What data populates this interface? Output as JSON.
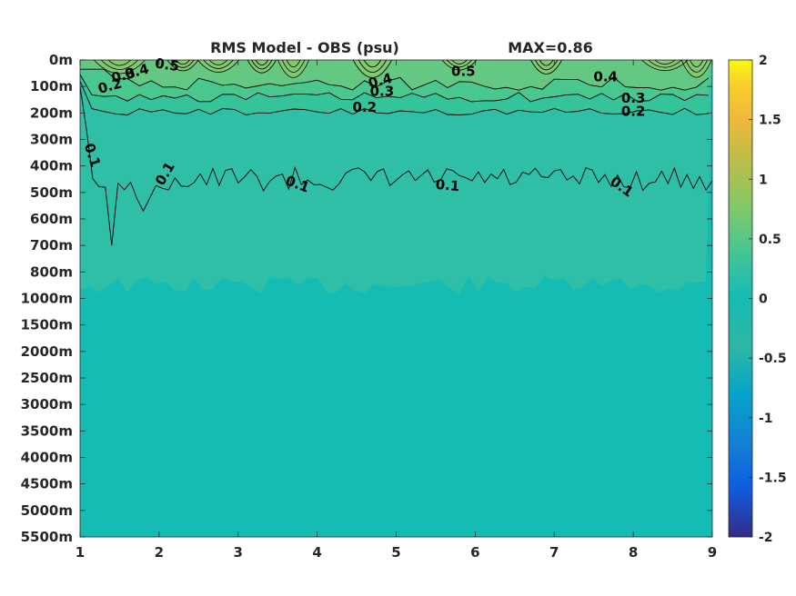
{
  "chart_data": {
    "type": "heatmap",
    "title": "RMS Model - OBS (psu)",
    "max_label": "MAX=0.86",
    "xlabel": "",
    "ylabel": "",
    "x_ticks": [
      "1",
      "2",
      "3",
      "4",
      "5",
      "6",
      "7",
      "8",
      "9"
    ],
    "xlim": [
      1,
      9
    ],
    "y_ticks": [
      "0m",
      "100m",
      "200m",
      "300m",
      "400m",
      "500m",
      "600m",
      "700m",
      "800m",
      "1000m",
      "1500m",
      "2000m",
      "2500m",
      "3000m",
      "3500m",
      "4000m",
      "4500m",
      "5000m",
      "5500m"
    ],
    "colorbar": {
      "range": [
        -2,
        2
      ],
      "ticks": [
        "2",
        "1.5",
        "1",
        "0.5",
        "0",
        "-0.5",
        "-1",
        "-1.5",
        "-2"
      ],
      "colormap": "parula"
    },
    "band_colors": {
      "v0_0": "#14bcb4",
      "v0_1": "#2ebfa6",
      "v0_2": "#35c49a",
      "v0_3": "#4ac68f",
      "v0_4": "#64c883",
      "v0_5": "#82c870"
    },
    "contour_levels": [
      0.1,
      0.2,
      0.3,
      0.4,
      0.5
    ],
    "contour_labels": [
      {
        "text": "0.5",
        "x": 2.1,
        "depth_index": 0.2,
        "angle": 8
      },
      {
        "text": "0.4",
        "x": 1.72,
        "depth_index": 0.45,
        "angle": -15
      },
      {
        "text": "0.3",
        "x": 1.55,
        "depth_index": 0.6,
        "angle": -15
      },
      {
        "text": "0.2",
        "x": 1.38,
        "depth_index": 1.0,
        "angle": -15
      },
      {
        "text": "0.1",
        "x": 1.15,
        "depth_index": 3.6,
        "angle": 72
      },
      {
        "text": "0.1",
        "x": 2.08,
        "depth_index": 4.3,
        "angle": -60
      },
      {
        "text": "0.1",
        "x": 3.75,
        "depth_index": 4.7,
        "angle": 20
      },
      {
        "text": "0.4",
        "x": 4.8,
        "depth_index": 0.8,
        "angle": -15
      },
      {
        "text": "0.3",
        "x": 4.82,
        "depth_index": 1.2,
        "angle": 0
      },
      {
        "text": "0.2",
        "x": 4.6,
        "depth_index": 1.8,
        "angle": 0
      },
      {
        "text": "0.5",
        "x": 5.85,
        "depth_index": 0.45,
        "angle": 0
      },
      {
        "text": "0.1",
        "x": 5.65,
        "depth_index": 4.75,
        "angle": 5
      },
      {
        "text": "0.4",
        "x": 7.65,
        "depth_index": 0.65,
        "angle": 0
      },
      {
        "text": "0.3",
        "x": 8.0,
        "depth_index": 1.45,
        "angle": 0
      },
      {
        "text": "0.2",
        "x": 8.0,
        "depth_index": 1.95,
        "angle": 0
      },
      {
        "text": "0.1",
        "x": 7.85,
        "depth_index": 4.8,
        "angle": 35
      }
    ],
    "grid": false,
    "legend": "colorbar-right"
  }
}
